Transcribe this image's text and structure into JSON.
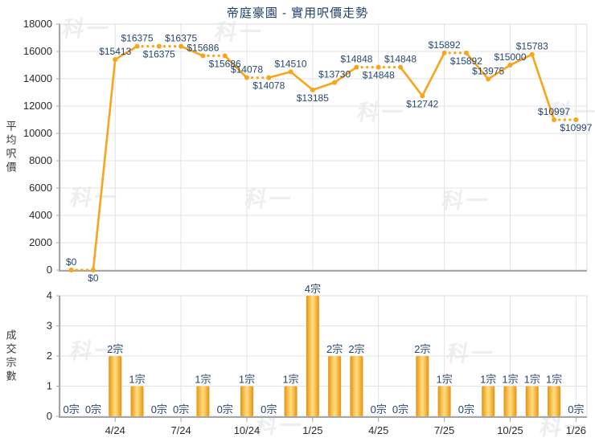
{
  "title": "帝庭豪園 - 實用呎價走勢",
  "watermark": {
    "text": "科一"
  },
  "colors": {
    "accent": "#F9A41B",
    "data_label": "#27466F",
    "title": "#1E3F69",
    "grid": "#E3E3E3",
    "border": "#DCDCDC",
    "axis": "#A6A6A6",
    "tick_text": "#2B2B2B",
    "axis_title_text": "#3A3A3A",
    "bar_edge": "#E6920E",
    "bar_center": "#FFD978",
    "watermark": "#ECEEF0"
  },
  "chart_data": [
    {
      "type": "line",
      "title": "帝庭豪園 - 實用呎價走勢",
      "ylabel": "平均呎價",
      "ylim": [
        0,
        18000
      ],
      "yticks": [
        0,
        2000,
        4000,
        6000,
        8000,
        10000,
        12000,
        14000,
        16000,
        18000
      ],
      "x_tick_labels": [
        "4/24",
        "7/24",
        "10/24",
        "1/25",
        "4/25",
        "7/25",
        "10/25",
        "1/26"
      ],
      "x_tick_indices": [
        2,
        5,
        8,
        11,
        14,
        17,
        20,
        23
      ],
      "values": [
        0,
        0,
        15413,
        16375,
        16375,
        16375,
        15686,
        15686,
        14078,
        14078,
        14510,
        13185,
        13730,
        14848,
        14848,
        14848,
        12742,
        15892,
        15892,
        13975,
        15000,
        15783,
        10997,
        10997
      ],
      "point_labels": [
        "$0",
        "$0",
        "$15413",
        "$16375",
        "$16375",
        "$16375",
        "$15686",
        "$15686",
        "$14078",
        "$14078",
        "$14510",
        "$13185",
        "$13730",
        "$14848",
        "$14848",
        "$14848",
        "$12742",
        "$15892",
        "$15892",
        "$13975",
        "$15000",
        "$15783",
        "$10997",
        "$10997"
      ],
      "label_positions": [
        "above",
        "below",
        "above",
        "above",
        "below",
        "above",
        "above",
        "below",
        "above",
        "below",
        "above",
        "below",
        "above",
        "above",
        "below",
        "above",
        "below",
        "above",
        "below",
        "above",
        "above",
        "above",
        "above",
        "below"
      ],
      "note": "segments drawn dotted when the month had 0 transactions",
      "grid": "on",
      "legend": "none"
    },
    {
      "type": "bar",
      "ylabel": "成交宗數",
      "ylim": [
        0,
        4
      ],
      "yticks": [
        0,
        1,
        2,
        3,
        4
      ],
      "x_tick_labels": [
        "4/24",
        "7/24",
        "10/24",
        "1/25",
        "4/25",
        "7/25",
        "10/25",
        "1/26"
      ],
      "x_tick_indices": [
        2,
        5,
        8,
        11,
        14,
        17,
        20,
        23
      ],
      "values": [
        0,
        0,
        2,
        1,
        0,
        0,
        1,
        0,
        1,
        0,
        1,
        4,
        2,
        2,
        0,
        0,
        2,
        1,
        0,
        1,
        1,
        1,
        1,
        0
      ],
      "bar_labels": [
        "0宗",
        "0宗",
        "2宗",
        "1宗",
        "0宗",
        "0宗",
        "1宗",
        "0宗",
        "1宗",
        "0宗",
        "1宗",
        "4宗",
        "2宗",
        "2宗",
        "0宗",
        "0宗",
        "2宗",
        "1宗",
        "0宗",
        "1宗",
        "1宗",
        "1宗",
        "1宗",
        "0宗"
      ],
      "grid": "on",
      "legend": "none"
    }
  ]
}
